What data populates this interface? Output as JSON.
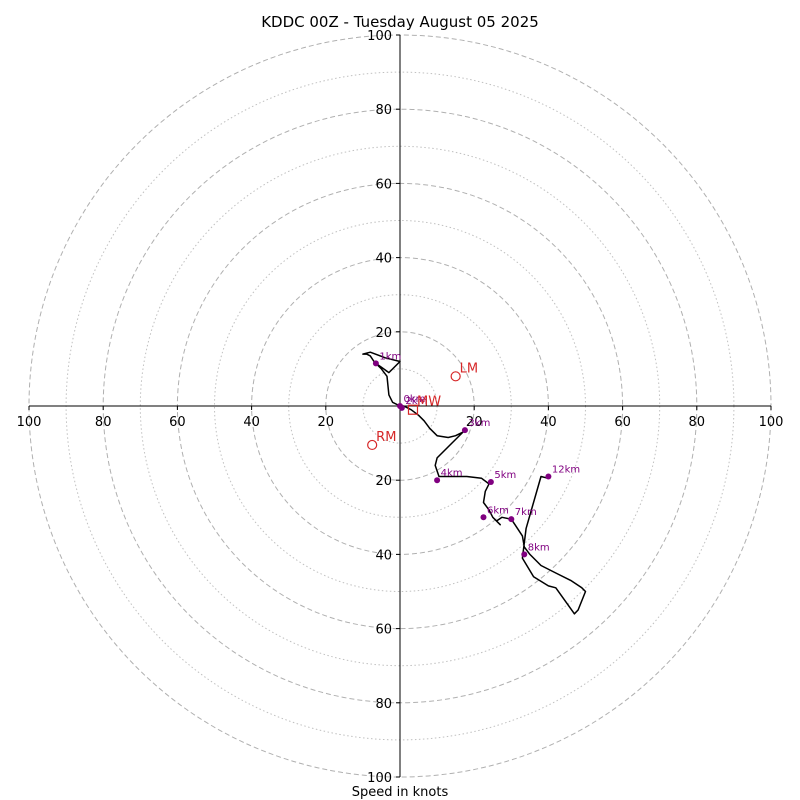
{
  "chart_data": {
    "type": "scatter",
    "subtype": "hodograph",
    "title": "KDDC 00Z - Tuesday August 05 2025",
    "xlabel": "Speed in knots",
    "xlim": [
      -100,
      100
    ],
    "ylim": [
      -100,
      100
    ],
    "grid": "dashed rings every 20 kt, dotted rings at odd 10s",
    "x_tick_labels": [
      "100",
      "80",
      "60",
      "40",
      "20",
      "20",
      "40",
      "60",
      "80",
      "100"
    ],
    "y_tick_labels": [
      "100",
      "80",
      "60",
      "40",
      "20",
      "20",
      "40",
      "60",
      "80",
      "100"
    ],
    "x_tick_values": [
      -100,
      -80,
      -60,
      -40,
      -20,
      20,
      40,
      60,
      80,
      100
    ],
    "y_tick_values": [
      100,
      80,
      60,
      40,
      20,
      -20,
      -40,
      -60,
      -80,
      -100
    ],
    "rings": [
      10,
      20,
      30,
      40,
      50,
      60,
      70,
      80,
      90,
      100
    ],
    "series": [
      {
        "type": "line",
        "color": "#000000",
        "x": [
          0,
          1,
          3,
          5,
          6.5,
          8,
          10,
          13,
          15,
          16,
          17,
          17.5,
          17,
          14,
          12,
          10,
          9.5,
          10.5,
          13,
          18,
          22,
          24,
          23,
          22.5,
          24,
          25,
          27,
          26,
          27.5,
          30,
          31,
          33,
          33.5,
          35,
          38,
          42,
          46,
          49,
          50,
          48,
          47,
          42,
          40,
          36,
          33,
          34,
          38,
          40
        ],
        "y": [
          0,
          0,
          -1,
          -2.5,
          -4,
          -6,
          -8,
          -8.5,
          -8,
          -7.5,
          -7,
          -6,
          -7,
          -10,
          -12,
          -14,
          -16,
          -19,
          -19,
          -19,
          -19.5,
          -21,
          -23,
          -26,
          -28,
          -30,
          -32,
          -31,
          -30,
          -30.5,
          -32,
          -35,
          -38,
          -40,
          -43,
          -45,
          -47,
          -49,
          -50,
          -55,
          -56,
          -49,
          -48.5,
          -46,
          -41,
          -33,
          -19,
          -19.5
        ]
      },
      {
        "type": "line",
        "color": "#000000",
        "x": [
          0,
          -2,
          -3,
          -3.5,
          -5,
          -6,
          -7,
          -8,
          -9,
          -10,
          -8,
          -4,
          0,
          -3,
          -6.5
        ],
        "y": [
          0,
          1,
          3,
          8,
          10,
          11,
          12,
          13.5,
          14,
          14,
          14.5,
          13,
          12,
          9,
          11.5
        ]
      }
    ],
    "height_markers": [
      {
        "label": "0km",
        "x": 0,
        "y": 0
      },
      {
        "label": "1km",
        "x": -6.5,
        "y": 11.5
      },
      {
        "label": "2km",
        "x": 0.5,
        "y": -0.5
      },
      {
        "label": "3km",
        "x": 17.5,
        "y": -6.5
      },
      {
        "label": "4km",
        "x": 10,
        "y": -20
      },
      {
        "label": "5km",
        "x": 24.5,
        "y": -20.5
      },
      {
        "label": "6km",
        "x": 22.5,
        "y": -30
      },
      {
        "label": "7km",
        "x": 30,
        "y": -30.5
      },
      {
        "label": "8km",
        "x": 33.5,
        "y": -40
      },
      {
        "label": "12km",
        "x": 40,
        "y": -19
      }
    ],
    "storm_motion": [
      {
        "label": "LM",
        "x": 15,
        "y": 8,
        "marker": "circle"
      },
      {
        "label": "MW",
        "x": 3.5,
        "y": -1,
        "marker": "square"
      },
      {
        "label": "RM",
        "x": -7.5,
        "y": -10.5,
        "marker": "circle"
      }
    ],
    "colors": {
      "trace": "#000000",
      "height_markers": "#800080",
      "storm_motion": "#d62728",
      "grid": "#b0b0b0",
      "axes": "#000000"
    }
  }
}
